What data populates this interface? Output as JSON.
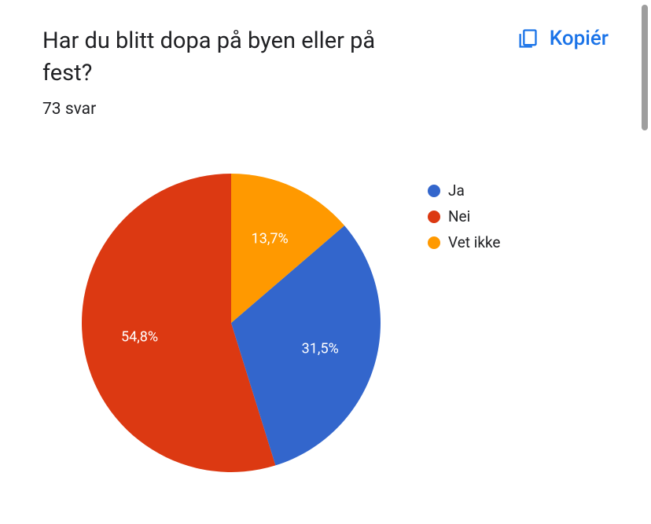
{
  "header": {
    "question": "Har du blitt dopa på byen eller på fest?",
    "copy_label": "Kopiér",
    "response_count": "73 svar"
  },
  "chart": {
    "type": "pie",
    "background_color": "#ffffff",
    "slices": [
      {
        "label": "Ja",
        "value": 31.5,
        "display": "31,5%",
        "color": "#3366cc"
      },
      {
        "label": "Nei",
        "value": 54.8,
        "display": "54,8%",
        "color": "#dc3912"
      },
      {
        "label": "Vet ikke",
        "value": 13.7,
        "display": "13,7%",
        "color": "#ff9900"
      }
    ],
    "start_angle_deg": 0,
    "label_fontsize": 18,
    "label_color": "#ffffff"
  },
  "legend": {
    "items": [
      {
        "label": "Ja",
        "color": "#3366cc"
      },
      {
        "label": "Nei",
        "color": "#dc3912"
      },
      {
        "label": "Vet ikke",
        "color": "#ff9900"
      }
    ],
    "label_fontsize": 19,
    "label_color": "#202124"
  },
  "copy_button_color": "#1a73e8"
}
